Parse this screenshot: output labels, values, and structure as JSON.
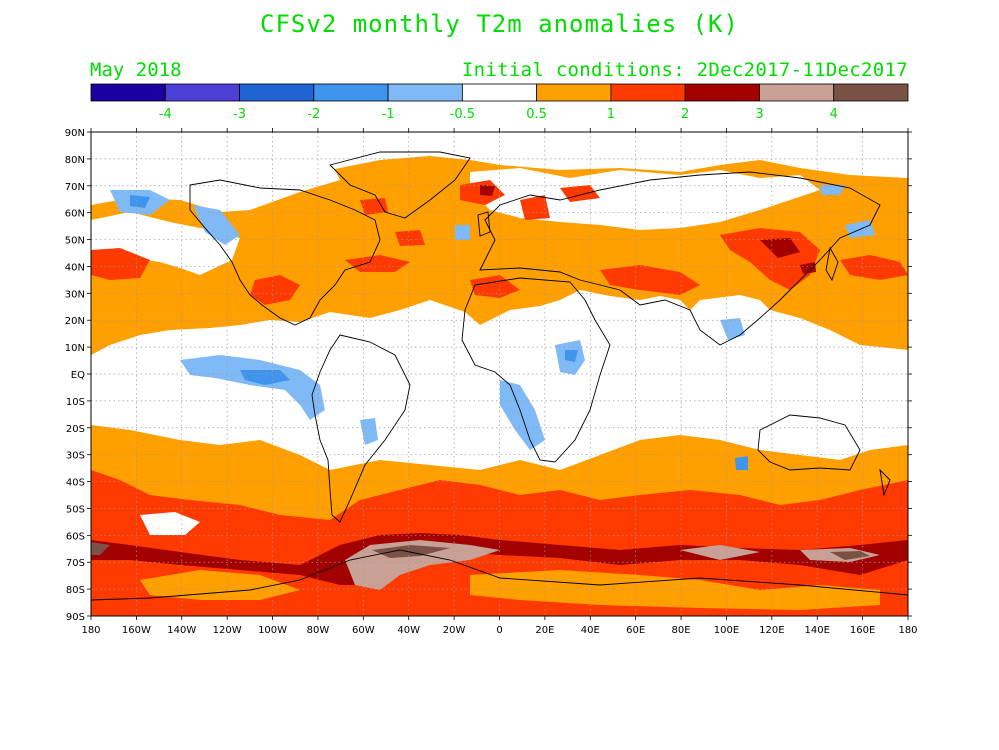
{
  "title": "CFSv2 monthly T2m anomalies (K)",
  "month": "May 2018",
  "initial_conditions": "Initial conditions: 2Dec2017-11Dec2017",
  "legend": {
    "colors": [
      "#1a00a0",
      "#4b3fd6",
      "#1f63d4",
      "#3f94ee",
      "#7fbaf6",
      "#ffffff",
      "#ff9f00",
      "#ff3a00",
      "#a30000",
      "#c8a094",
      "#7a5245"
    ],
    "labels": [
      "-4",
      "-3",
      "-2",
      "-1",
      "-0.5",
      "0.5",
      "1",
      "2",
      "3",
      "4"
    ]
  },
  "lat_labels": [
    "90N",
    "80N",
    "70N",
    "60N",
    "50N",
    "40N",
    "30N",
    "20N",
    "10N",
    "EQ",
    "10S",
    "20S",
    "30S",
    "40S",
    "50S",
    "60S",
    "70S",
    "80S",
    "90S"
  ],
  "lon_labels": [
    "180",
    "160W",
    "140W",
    "120W",
    "100W",
    "80W",
    "60W",
    "40W",
    "20W",
    "0",
    "20E",
    "40E",
    "60E",
    "80E",
    "100E",
    "120E",
    "140E",
    "160E",
    "180"
  ],
  "colors": {
    "text_green": "#00dd00",
    "white": "#ffffff",
    "light_blue": "#7fbaf6",
    "blue": "#3f94ee",
    "orange": "#ff9f00",
    "red": "#ff3a00",
    "dark_red": "#a30000",
    "tan": "#c8a094",
    "brown": "#7a5245"
  }
}
